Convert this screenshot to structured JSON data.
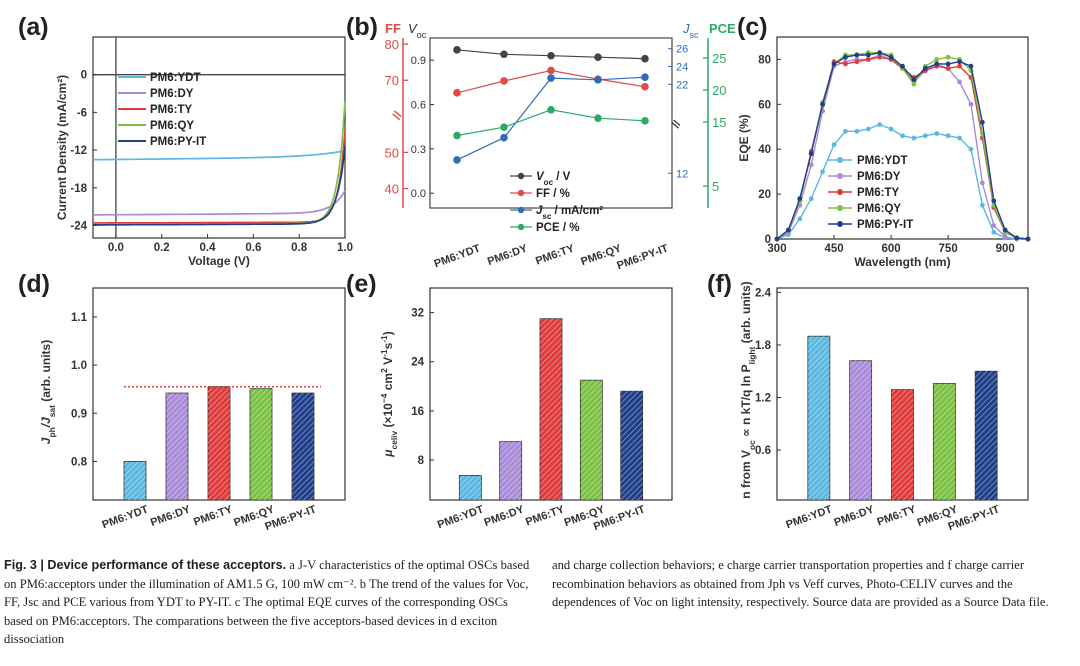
{
  "colors": {
    "YDT": "#5bb8e0",
    "DY": "#a98bd8",
    "TY": "#e03a3a",
    "QY": "#7cc242",
    "PYIT": "#1f3f8a",
    "voc": "#444444",
    "ff": "#e04b4b",
    "jsc": "#2e6db8",
    "pce": "#2fa865"
  },
  "chart_data": [
    {
      "panel": "(a)",
      "type": "line",
      "xlabel": "Voltage (V)",
      "ylabel": "Current Density (mA/cm²)",
      "xlim": [
        -0.1,
        1.0
      ],
      "ylim": [
        -26,
        6
      ],
      "xticks": [
        "0.0",
        "0.2",
        "0.4",
        "0.6",
        "0.8",
        "1.0"
      ],
      "xtick_values": [
        0,
        0.2,
        0.4,
        0.6,
        0.8,
        1.0
      ],
      "yticks": [
        "0",
        "-6",
        "-12",
        "-18",
        "-24"
      ],
      "ytick_values": [
        0,
        -6,
        -12,
        -18,
        -24
      ],
      "series": [
        {
          "name": "PM6:YDT",
          "key": "YDT",
          "jsc": -13.5,
          "a": 0.35,
          "voc": 0.995,
          "s": 0.16
        },
        {
          "name": "PM6:DY",
          "key": "DY",
          "jsc": -22.3,
          "a": 0.25,
          "voc": 0.93,
          "s": 0.055
        },
        {
          "name": "PM6:TY",
          "key": "TY",
          "jsc": -23.6,
          "a": 0.12,
          "voc": 0.92,
          "s": 0.03
        },
        {
          "name": "PM6:QY",
          "key": "QY",
          "jsc": -23.8,
          "a": 0.12,
          "voc": 0.905,
          "s": 0.032
        },
        {
          "name": "PM6:PY-IT",
          "key": "PYIT",
          "jsc": -23.9,
          "a": 0.15,
          "voc": 0.91,
          "s": 0.036
        }
      ]
    },
    {
      "panel": "(b)",
      "type": "line",
      "categories": [
        "PM6:YDT",
        "PM6:DY",
        "PM6:TY",
        "PM6:QY",
        "PM6:PY-IT"
      ],
      "left_title_ff": "FF",
      "left_title_voc": "V",
      "left_title_voc_sub": "oc",
      "right_title_jsc": "J",
      "right_title_jsc_sub": "sc",
      "right_title_pce": "PCE",
      "voc_axis": {
        "range": [
          -0.1,
          1.05
        ],
        "ticks": [
          "0.0",
          "0.3",
          "0.6",
          "0.9"
        ],
        "values": [
          0,
          0.3,
          0.6,
          0.9
        ]
      },
      "ff_axis": {
        "range": [
          34.6,
          81.7
        ],
        "ticks": [
          "40",
          "50",
          "70",
          "80"
        ],
        "values": [
          40,
          50,
          70,
          80
        ]
      },
      "jsc_axis": {
        "range": [
          8.1,
          27.2
        ],
        "ticks": [
          "12",
          "22",
          "24",
          "26"
        ],
        "values": [
          12,
          22,
          24,
          26
        ]
      },
      "pce_axis": {
        "range": [
          1.6,
          28.1
        ],
        "ticks": [
          "5",
          "15",
          "20",
          "25"
        ],
        "values": [
          5,
          15,
          20,
          25
        ]
      },
      "series": [
        {
          "name": "V",
          "sub": "oc",
          "unit": " / V",
          "key": "voc",
          "axis": "voc_axis",
          "values": [
            0.97,
            0.94,
            0.93,
            0.92,
            0.91
          ]
        },
        {
          "name": "FF / %",
          "sub": "",
          "unit": "",
          "key": "ff",
          "axis": "ff_axis",
          "values": [
            66.5,
            69.8,
            72.7,
            70.3,
            68.2
          ]
        },
        {
          "name": "J",
          "sub": "sc",
          "unit": " / mA/cm²",
          "key": "jsc",
          "axis": "jsc_axis",
          "values": [
            13.5,
            16.0,
            22.7,
            22.5,
            22.8
          ]
        },
        {
          "name": "PCE / %",
          "sub": "",
          "unit": "",
          "key": "pce",
          "axis": "pce_axis",
          "values": [
            12.9,
            14.2,
            16.9,
            15.6,
            15.2
          ]
        }
      ]
    },
    {
      "panel": "(c)",
      "type": "line",
      "xlabel": "Wavelength (nm)",
      "ylabel": "EQE (%)",
      "xlim": [
        300,
        960
      ],
      "ylim": [
        0,
        90
      ],
      "xticks": [
        "300",
        "450",
        "600",
        "750",
        "900"
      ],
      "xtick_values": [
        300,
        450,
        600,
        750,
        900
      ],
      "yticks": [
        "0",
        "20",
        "40",
        "60",
        "80"
      ],
      "ytick_values": [
        0,
        20,
        40,
        60,
        80
      ],
      "x": [
        300,
        330,
        360,
        390,
        420,
        450,
        480,
        510,
        540,
        570,
        600,
        630,
        660,
        690,
        720,
        750,
        780,
        810,
        840,
        870,
        900,
        930,
        960
      ],
      "series": [
        {
          "name": "PM6:YDT",
          "key": "YDT",
          "values": [
            0,
            2,
            9,
            18,
            30,
            42,
            48,
            48,
            49,
            51,
            49,
            46,
            45,
            46,
            47,
            46,
            45,
            40,
            15,
            3,
            0.5,
            0,
            0
          ]
        },
        {
          "name": "PM6:DY",
          "key": "DY",
          "values": [
            0,
            3,
            15,
            33,
            57,
            77,
            79,
            80,
            80,
            82,
            80,
            76,
            70,
            75,
            78,
            76,
            70,
            60,
            25,
            6,
            1,
            0,
            0
          ]
        },
        {
          "name": "PM6:TY",
          "key": "TY",
          "values": [
            0,
            4,
            17,
            39,
            60,
            79,
            78,
            79,
            80,
            81,
            80,
            76,
            72,
            75,
            77,
            76,
            77,
            72,
            45,
            14,
            3,
            0.5,
            0
          ]
        },
        {
          "name": "PM6:QY",
          "key": "QY",
          "values": [
            0,
            4,
            17,
            38,
            61,
            78,
            82,
            82,
            83,
            83,
            82,
            76,
            69,
            77,
            80,
            81,
            80,
            75,
            47,
            15,
            3,
            0.5,
            0
          ]
        },
        {
          "name": "PM6:PY-IT",
          "key": "PYIT",
          "values": [
            0,
            4,
            18,
            38,
            60,
            78,
            81,
            82,
            82,
            83,
            81,
            77,
            71,
            76,
            78,
            78,
            79,
            77,
            52,
            17,
            4,
            0.5,
            0
          ]
        }
      ]
    },
    {
      "panel": "(d)",
      "type": "bar",
      "ylabel_main": "J",
      "ylabel_sub1": "ph",
      "ylabel_mid": "/J",
      "ylabel_sub2": "sat",
      "ylabel_tail": " (arb. units)",
      "categories": [
        "PM6:YDT",
        "PM6:DY",
        "PM6:TY",
        "PM6:QY",
        "PM6:PY-IT"
      ],
      "keys": [
        "YDT",
        "DY",
        "TY",
        "QY",
        "PYIT"
      ],
      "values": [
        0.8,
        0.942,
        0.955,
        0.951,
        0.942
      ],
      "ylim": [
        0.72,
        1.16
      ],
      "yticks": [
        "0.8",
        "0.9",
        "1.0",
        "1.1"
      ],
      "ytick_values": [
        0.8,
        0.9,
        1.0,
        1.1
      ],
      "reference_line": 0.955
    },
    {
      "panel": "(e)",
      "type": "bar",
      "ylabel_main": "μ",
      "ylabel_sub": "celiv",
      "ylabel_tail": " (×10",
      "ylabel_exp": "−4",
      "ylabel_unit": " cm",
      "ylabel_exp2": "2",
      "ylabel_unit2": " V",
      "ylabel_exp3": "-1",
      "ylabel_unit3": "s",
      "ylabel_exp4": "-1",
      "ylabel_close": ")",
      "categories": [
        "PM6:YDT",
        "PM6:DY",
        "PM6:TY",
        "PM6:QY",
        "PM6:PY-IT"
      ],
      "keys": [
        "YDT",
        "DY",
        "TY",
        "QY",
        "PYIT"
      ],
      "values": [
        5.5,
        11,
        31,
        21,
        19.2
      ],
      "ylim": [
        1.5,
        36
      ],
      "yticks": [
        "8",
        "16",
        "24",
        "32"
      ],
      "ytick_values": [
        8,
        16,
        24,
        32
      ]
    },
    {
      "panel": "(f)",
      "type": "bar",
      "ylabel_a": "n from V",
      "ylabel_a_sub": "oc",
      "ylabel_b": " ∝ n kT/q ln P",
      "ylabel_b_sub": "light",
      "ylabel_c": " (arb. units)",
      "categories": [
        "PM6:YDT",
        "PM6:DY",
        "PM6:TY",
        "PM6:QY",
        "PM6:PY-IT"
      ],
      "keys": [
        "YDT",
        "DY",
        "TY",
        "QY",
        "PYIT"
      ],
      "values": [
        1.9,
        1.62,
        1.29,
        1.36,
        1.5
      ],
      "ylim": [
        0.03,
        2.45
      ],
      "yticks": [
        "0.6",
        "1.2",
        "1.8",
        "2.4"
      ],
      "ytick_values": [
        0.6,
        1.2,
        1.8,
        2.4
      ]
    }
  ],
  "caption": {
    "fig_label": "Fig. 3 | Device performance of these acceptors.",
    "left": " a J-V characteristics of the optimal OSCs based on PM6:acceptors under the illumination of AM1.5 G, 100 mW cm⁻². b The trend of the values for Voc, FF, Jsc and PCE various from YDT to PY-IT. c The optimal EQE curves of the corresponding OSCs based on PM6:acceptors. The comparations between the five acceptors-based devices in d exciton dissociation",
    "right": "and charge collection behaviors; e charge carrier transportation properties and f charge carrier recombination behaviors as obtained from Jph vs Veff curves, Photo-CELIV curves and the dependences of Voc on light intensity, respectively. Source data are provided as a Source Data file."
  }
}
